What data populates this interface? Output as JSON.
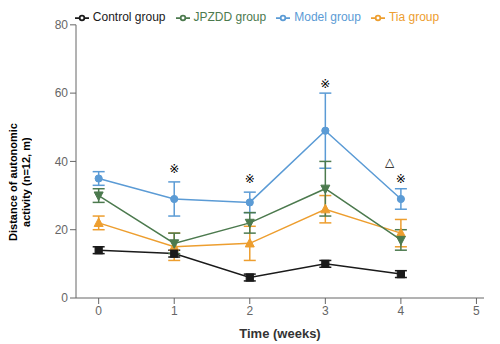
{
  "chart_data": {
    "type": "line",
    "x": [
      0,
      1,
      2,
      3,
      4
    ],
    "series": [
      {
        "name": "Model group",
        "color": "#5B9BD5",
        "marker": "circle",
        "values": [
          35,
          29,
          28,
          49,
          29
        ],
        "errors": [
          2,
          5,
          3,
          11,
          3
        ]
      },
      {
        "name": "Tia group",
        "color": "#ED9E2F",
        "marker": "triangle",
        "values": [
          22,
          15,
          16,
          26,
          19
        ],
        "errors": [
          2,
          4,
          5,
          4,
          4
        ]
      },
      {
        "name": "Control group",
        "color": "#1A1A1A",
        "marker": "square",
        "values": [
          14,
          13,
          6,
          10,
          7
        ],
        "errors": [
          1,
          1,
          1,
          1,
          1
        ]
      },
      {
        "name": "JPZDD group",
        "color": "#4C7A4E",
        "marker": "triangle-down",
        "values": [
          30,
          16,
          22,
          32,
          17
        ],
        "errors": [
          2,
          3,
          3,
          8,
          3
        ]
      }
    ],
    "xlabel": "Time (weeks)",
    "ylabel": "Distance of autonomic\nactivity (n=12, m)",
    "xlim": [
      -0.3,
      5.1
    ],
    "ylim": [
      0,
      80
    ],
    "xticks": [
      0,
      1,
      2,
      3,
      4,
      5
    ],
    "yticks": [
      0,
      20,
      40,
      60,
      80
    ],
    "annotations": [
      {
        "text": "※",
        "x": 1,
        "y": 36
      },
      {
        "text": "※",
        "x": 2,
        "y": 33
      },
      {
        "text": "※",
        "x": 3,
        "y": 61
      },
      {
        "text": "※",
        "x": 4,
        "y": 33
      },
      {
        "text": "△",
        "x": 3.85,
        "y": 38
      }
    ],
    "legend": "top",
    "grid": false
  }
}
